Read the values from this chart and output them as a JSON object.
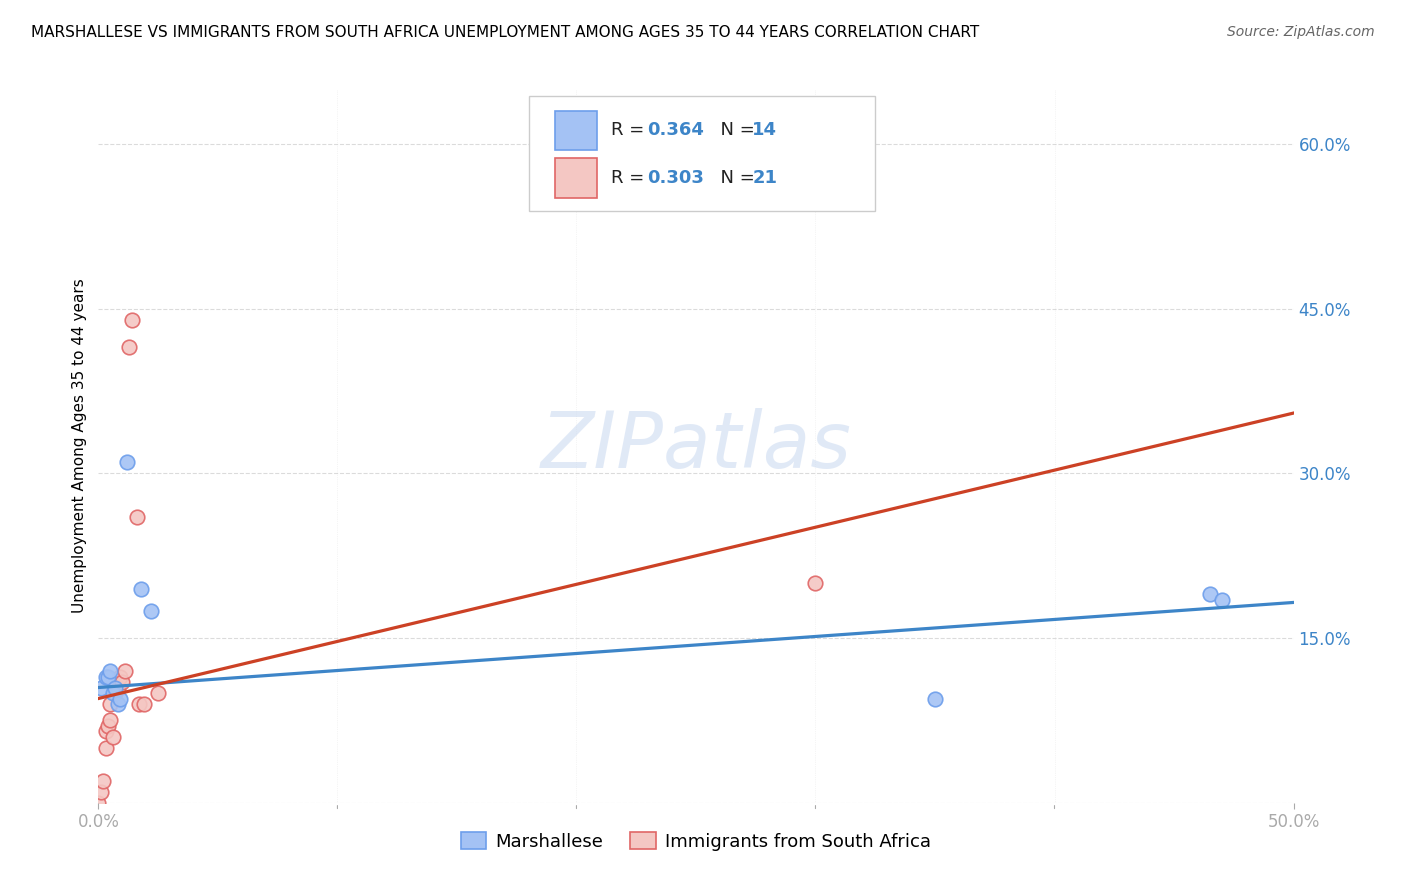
{
  "title": "MARSHALLESE VS IMMIGRANTS FROM SOUTH AFRICA UNEMPLOYMENT AMONG AGES 35 TO 44 YEARS CORRELATION CHART",
  "source": "Source: ZipAtlas.com",
  "ylabel": "Unemployment Among Ages 35 to 44 years",
  "xlim": [
    0.0,
    0.5
  ],
  "ylim": [
    0.0,
    0.65
  ],
  "ytick_vals": [
    0.0,
    0.15,
    0.3,
    0.45,
    0.6
  ],
  "ytick_labels": [
    "",
    "15.0%",
    "30.0%",
    "45.0%",
    "60.0%"
  ],
  "xtick_vals": [
    0.0,
    0.1,
    0.2,
    0.3,
    0.4,
    0.5
  ],
  "xtick_show": [
    "0.0%",
    "50.0%"
  ],
  "xtick_show_vals": [
    0.0,
    0.5
  ],
  "blue_scatter_face": "#a4c2f4",
  "blue_scatter_edge": "#6d9eeb",
  "pink_scatter_face": "#f4c7c3",
  "pink_scatter_edge": "#e06666",
  "blue_line_color": "#3d85c8",
  "pink_line_color": "#cc4125",
  "dash_line_color": "#aaaaaa",
  "legend_R1": "0.364",
  "legend_N1": "14",
  "legend_R2": "0.303",
  "legend_N2": "21",
  "marshallese_x": [
    0.001,
    0.003,
    0.004,
    0.005,
    0.006,
    0.007,
    0.008,
    0.009,
    0.012,
    0.018,
    0.022,
    0.35,
    0.465,
    0.47
  ],
  "marshallese_y": [
    0.105,
    0.115,
    0.115,
    0.12,
    0.1,
    0.105,
    0.09,
    0.095,
    0.31,
    0.195,
    0.175,
    0.095,
    0.19,
    0.185
  ],
  "sa_x": [
    0.0,
    0.001,
    0.002,
    0.003,
    0.003,
    0.004,
    0.005,
    0.005,
    0.006,
    0.007,
    0.008,
    0.009,
    0.01,
    0.011,
    0.013,
    0.014,
    0.016,
    0.017,
    0.019,
    0.025,
    0.3
  ],
  "sa_y": [
    0.0,
    0.01,
    0.02,
    0.05,
    0.065,
    0.07,
    0.075,
    0.09,
    0.06,
    0.1,
    0.105,
    0.115,
    0.11,
    0.12,
    0.415,
    0.44,
    0.26,
    0.09,
    0.09,
    0.1,
    0.2
  ],
  "watermark_text": "ZIPatlas",
  "watermark_color": "#c8d8f0",
  "background_color": "#ffffff",
  "grid_color": "#cccccc",
  "marker_size": 110,
  "title_fontsize": 11,
  "source_fontsize": 10,
  "tick_label_fontsize": 12,
  "ylabel_fontsize": 11,
  "legend_fontsize": 13
}
